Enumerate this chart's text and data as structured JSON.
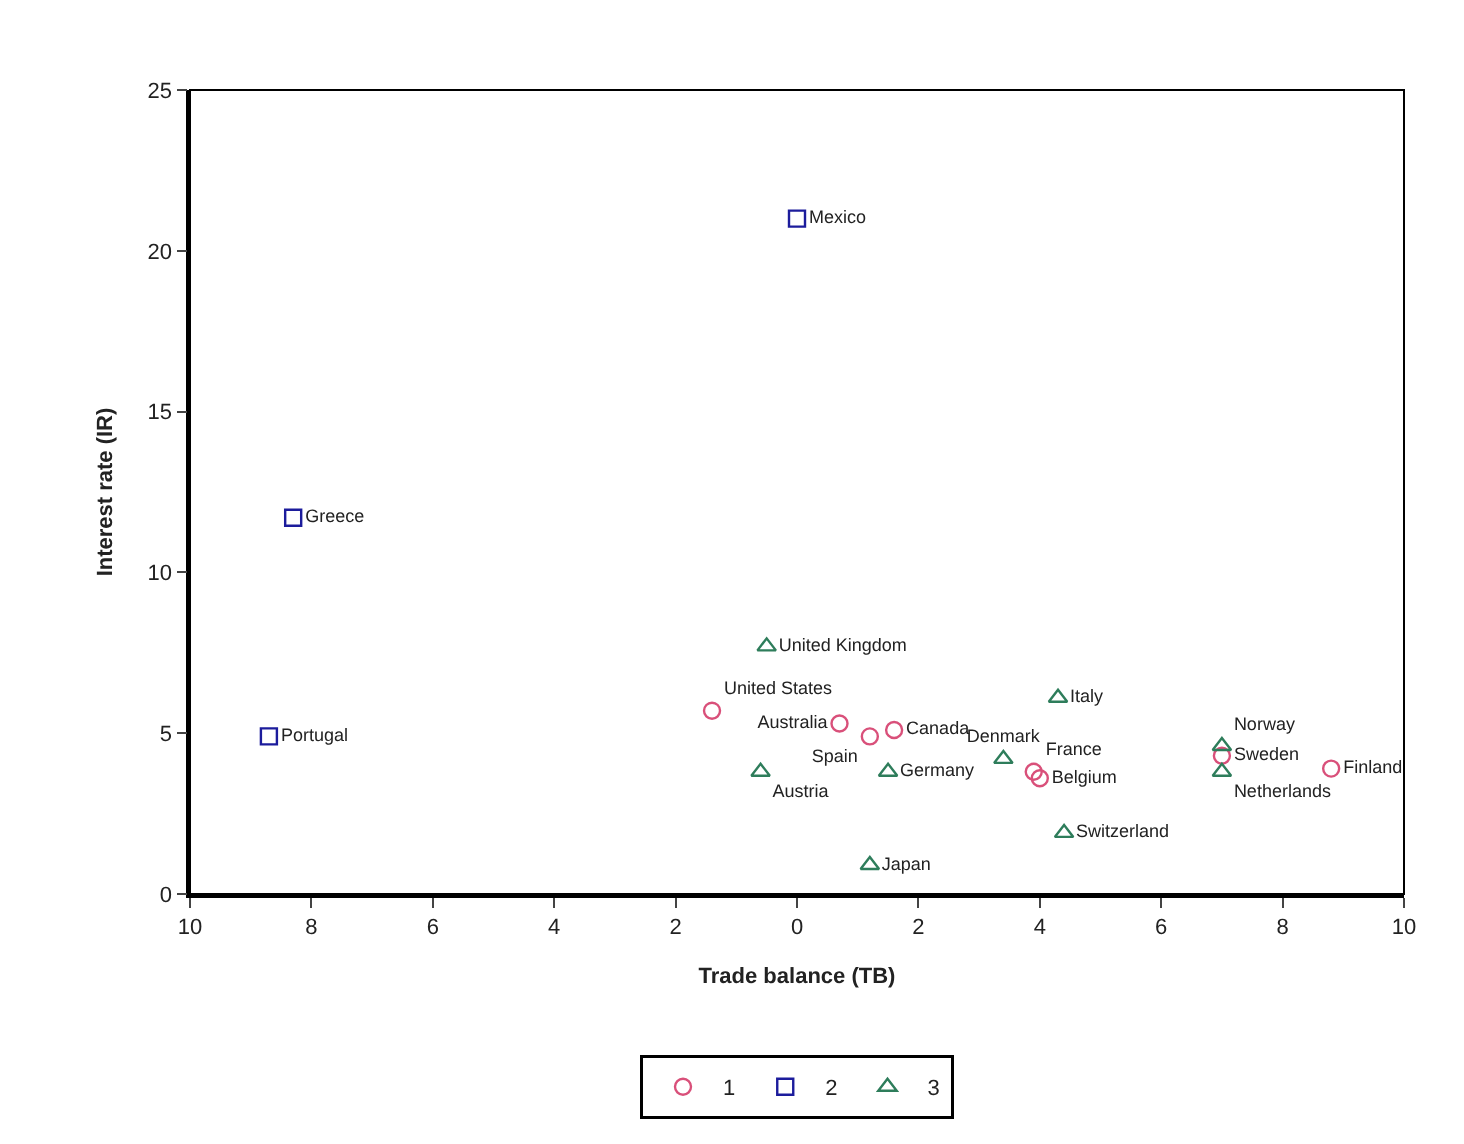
{
  "chart_data": {
    "type": "scatter",
    "xlabel": "Trade balance (TB)",
    "ylabel": "Interest rate (IR)",
    "xlim": [
      -10,
      10
    ],
    "ylim": [
      0,
      25
    ],
    "xticks": [
      {
        "value": -10,
        "label": "10"
      },
      {
        "value": -8,
        "label": "8"
      },
      {
        "value": -6,
        "label": "6"
      },
      {
        "value": -4,
        "label": "4"
      },
      {
        "value": -2,
        "label": "2"
      },
      0,
      2,
      4,
      6,
      8,
      10
    ],
    "yticks": [
      0,
      5,
      10,
      15,
      20,
      25
    ],
    "legend": "bottom",
    "series": [
      {
        "name": "1",
        "color": "#d9507a",
        "marker": "circle",
        "x": [
          -1.4,
          0.7,
          1.2,
          1.6,
          3.9,
          4.0,
          7.0,
          8.8
        ],
        "values": [
          5.7,
          5.3,
          4.9,
          5.1,
          3.8,
          3.6,
          4.3,
          3.9
        ],
        "value_labels": [
          "United States",
          "Australia",
          "Spain",
          "Canada",
          "France",
          "Belgium",
          "Sweden",
          "Finland"
        ]
      },
      {
        "name": "2",
        "color": "#1c1c9c",
        "marker": "square",
        "x": [
          0.0,
          -8.3,
          -8.7
        ],
        "values": [
          21.0,
          11.7,
          4.9
        ],
        "value_labels": [
          "Mexico",
          "Greece",
          "Portugal"
        ]
      },
      {
        "name": "3",
        "color": "#2e7d5b",
        "marker": "triangle",
        "x": [
          -0.5,
          4.3,
          -0.6,
          1.5,
          1.2,
          4.4,
          3.4,
          7.0,
          7.0
        ],
        "values": [
          7.7,
          6.1,
          3.8,
          3.8,
          0.9,
          1.9,
          4.2,
          4.6,
          3.8
        ],
        "value_labels": [
          "United Kingdom",
          "Italy",
          "Austria",
          "Germany",
          "Japan",
          "Switzerland",
          "Denmark",
          "Norway",
          "Netherlands"
        ]
      }
    ]
  }
}
